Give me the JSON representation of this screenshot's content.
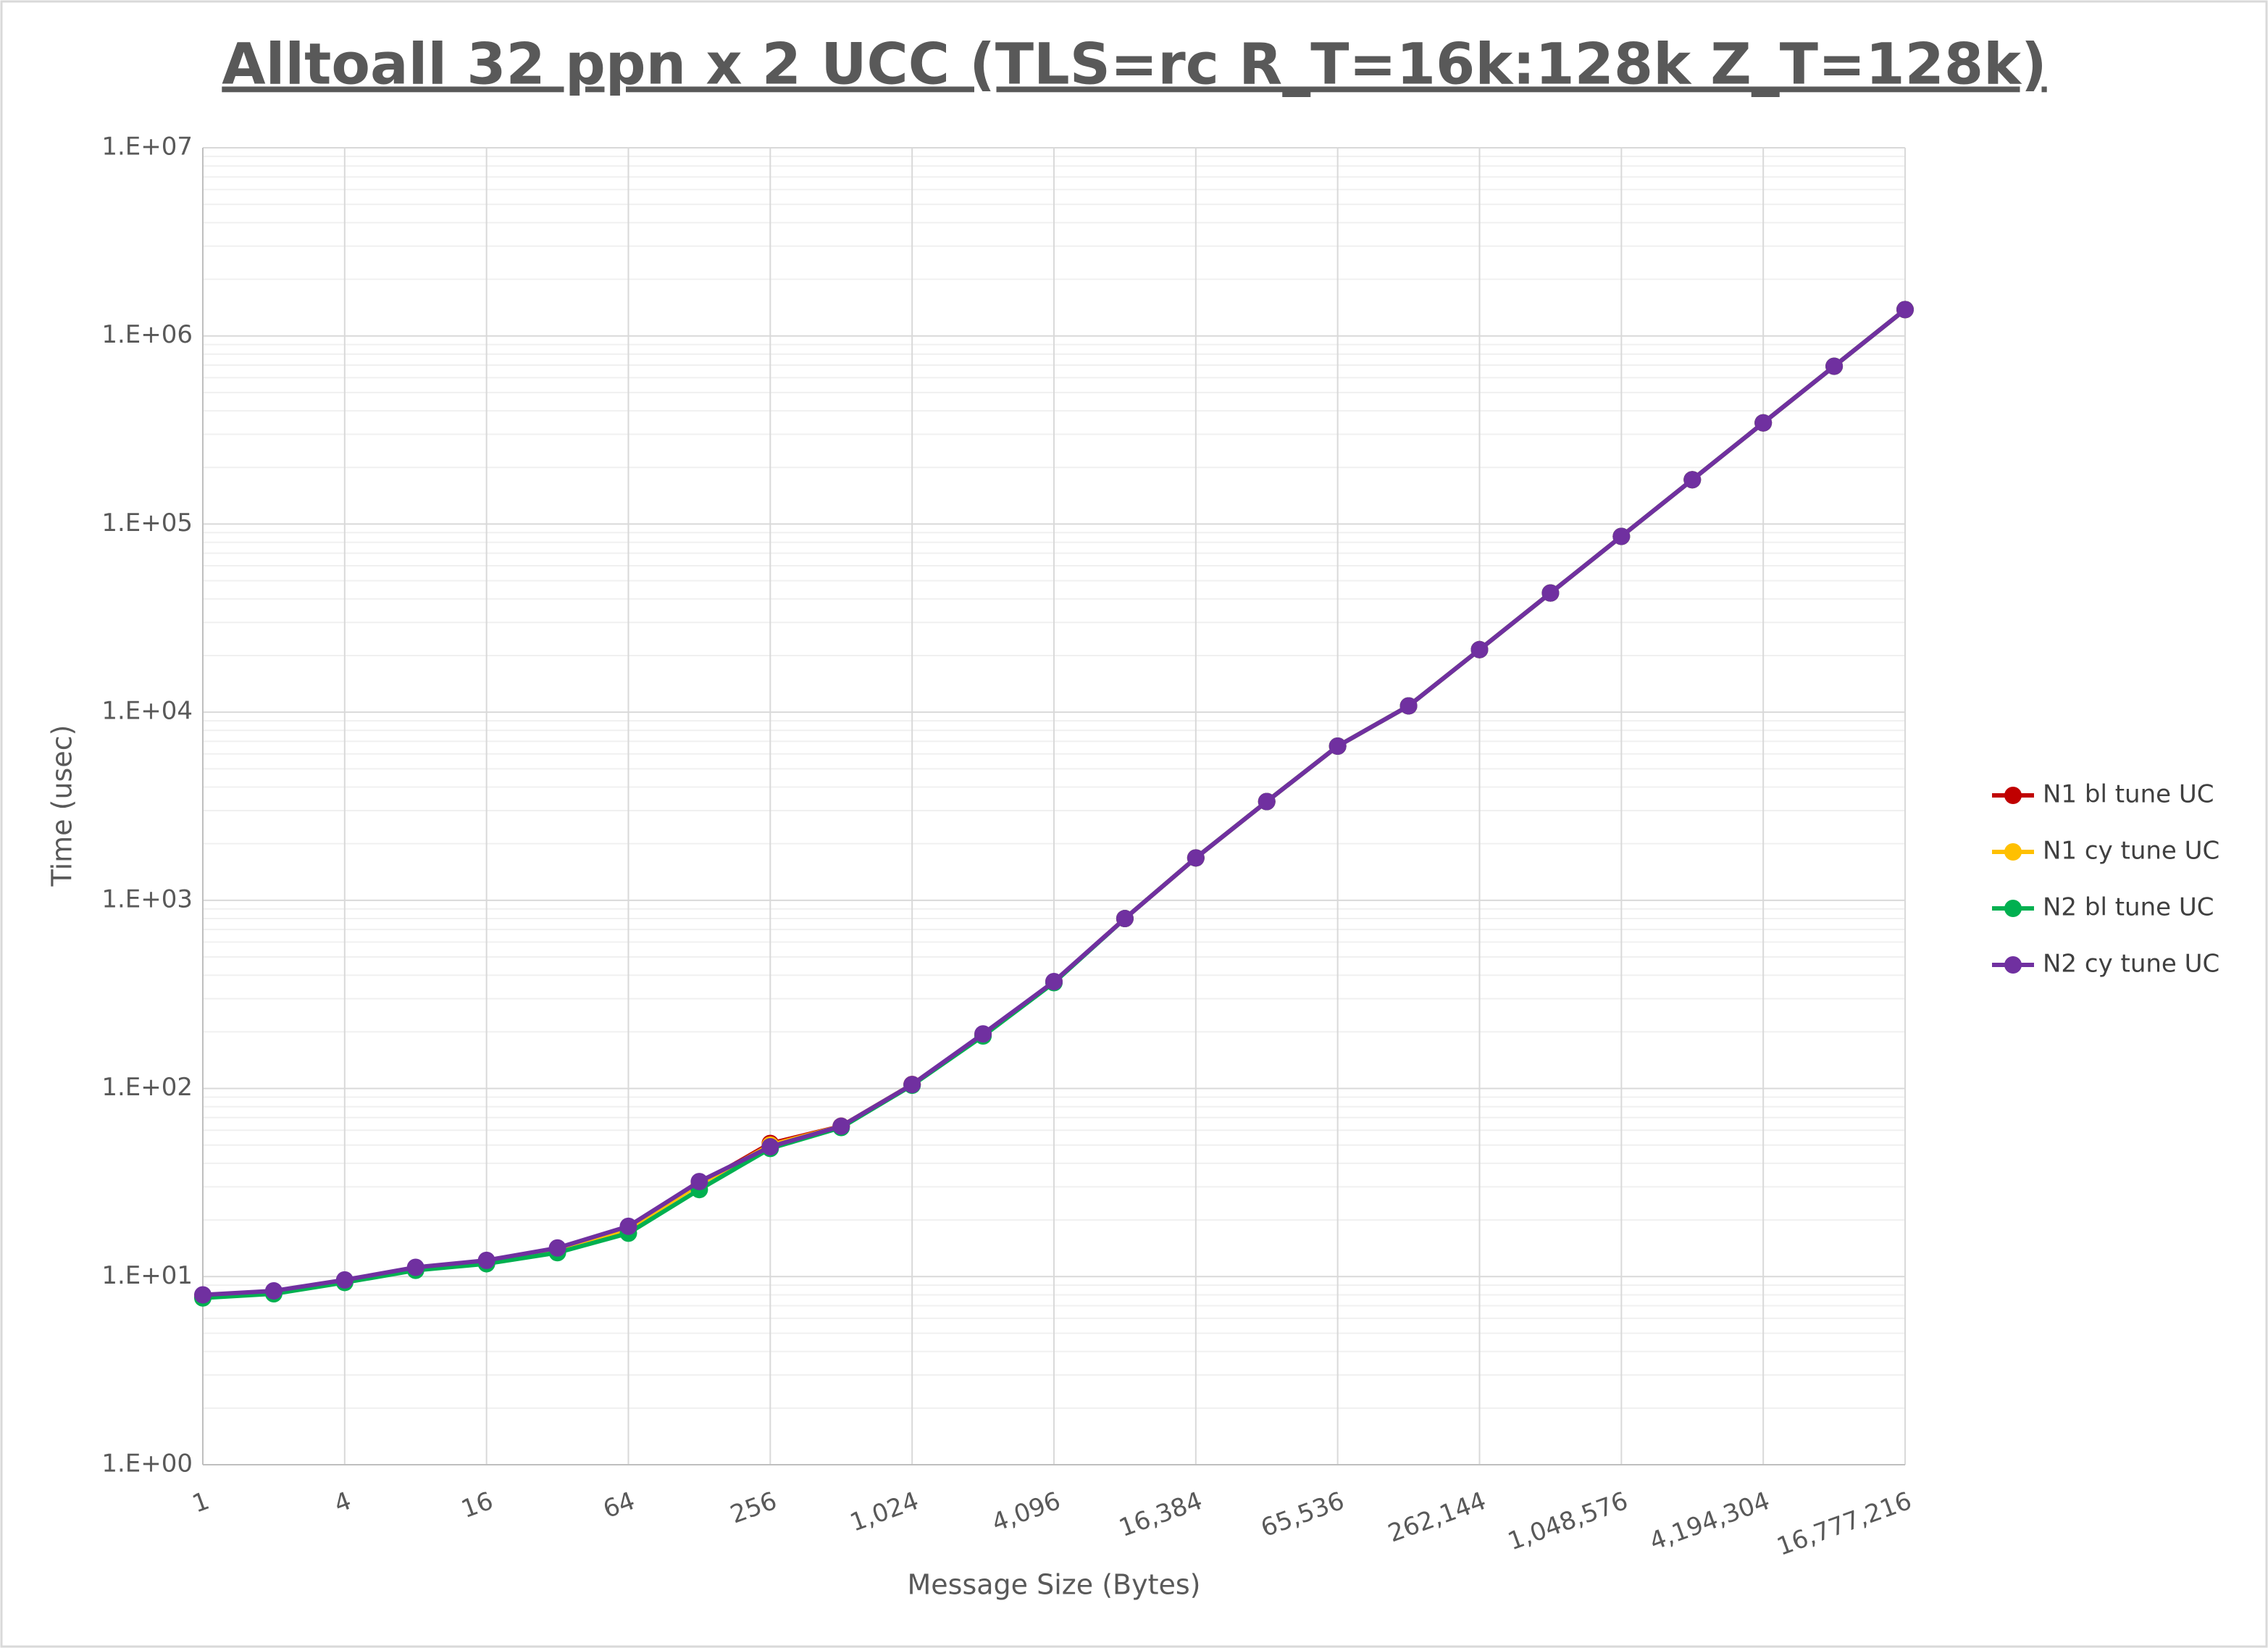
{
  "chart_data": {
    "type": "line",
    "title": "Alltoall 32 ppn x 2 UCC (TLS=rc R_T=16k:128k Z_T=128k)",
    "x_label": "Message Size (Bytes)",
    "y_label": "Time (usec)",
    "x": [
      1,
      2,
      4,
      8,
      16,
      32,
      64,
      128,
      256,
      512,
      1024,
      2048,
      4096,
      8192,
      16384,
      32768,
      65536,
      131072,
      262144,
      524288,
      1048576,
      2097152,
      4194304,
      8388608,
      16777216
    ],
    "series": [
      {
        "name": "N1 bl tune UC",
        "color": "#c00000",
        "values": [
          7.9,
          8.3,
          9.5,
          11.1,
          12.1,
          14,
          18.2,
          31,
          51,
          63,
          105,
          192,
          368,
          800,
          1680,
          3350,
          6600,
          10800,
          21500,
          43000,
          86000,
          172000,
          345000,
          690000,
          1380000
        ]
      },
      {
        "name": "N1 cy tune UC",
        "color": "#ffc000",
        "values": [
          7.9,
          8.3,
          9.5,
          11.0,
          12.0,
          13.8,
          18,
          31,
          50,
          63,
          105,
          193,
          368,
          800,
          1680,
          3350,
          6600,
          10800,
          21500,
          43000,
          86000,
          172000,
          345000,
          690000,
          1380000
        ]
      },
      {
        "name": "N2 bl tune UC",
        "color": "#00b050",
        "values": [
          7.7,
          8.1,
          9.3,
          10.8,
          11.7,
          13.4,
          17,
          29,
          48,
          62,
          104,
          190,
          365,
          800,
          1680,
          3350,
          6600,
          10800,
          21500,
          43000,
          86000,
          172000,
          345000,
          690000,
          1380000
        ]
      },
      {
        "name": "N2 cy tune UC",
        "color": "#7030a0",
        "values": [
          8.0,
          8.4,
          9.6,
          11.2,
          12.2,
          14.2,
          18.5,
          32,
          49,
          63,
          105,
          195,
          370,
          800,
          1680,
          3350,
          6600,
          10800,
          21500,
          43000,
          86000,
          172000,
          345000,
          690000,
          1380000
        ]
      }
    ],
    "xscale": "log",
    "yscale": "log",
    "xlim": [
      1,
      16777216
    ],
    "ylim": [
      1,
      10000000
    ],
    "xticks": [
      1,
      4,
      16,
      64,
      256,
      {
        "value": 1024,
        "label": "1,024"
      },
      {
        "value": 4096,
        "label": "4,096"
      },
      {
        "value": 16384,
        "label": "16,384"
      },
      {
        "value": 65536,
        "label": "65,536"
      },
      {
        "value": 262144,
        "label": "262,144"
      },
      {
        "value": 1048576,
        "label": "1,048,576"
      },
      {
        "value": 4194304,
        "label": "4,194,304"
      },
      {
        "value": 16777216,
        "label": "16,777,216"
      }
    ],
    "yticks": [
      {
        "value": 1,
        "label": "1.E+00"
      },
      {
        "value": 10,
        "label": "1.E+01"
      },
      {
        "value": 100,
        "label": "1.E+02"
      },
      {
        "value": 1000,
        "label": "1.E+03"
      },
      {
        "value": 10000,
        "label": "1.E+04"
      },
      {
        "value": 100000,
        "label": "1.E+05"
      },
      {
        "value": 1000000,
        "label": "1.E+06"
      },
      {
        "value": 10000000,
        "label": "1.E+07"
      }
    ],
    "grid": true,
    "minor_grid": true,
    "legend": "right"
  }
}
